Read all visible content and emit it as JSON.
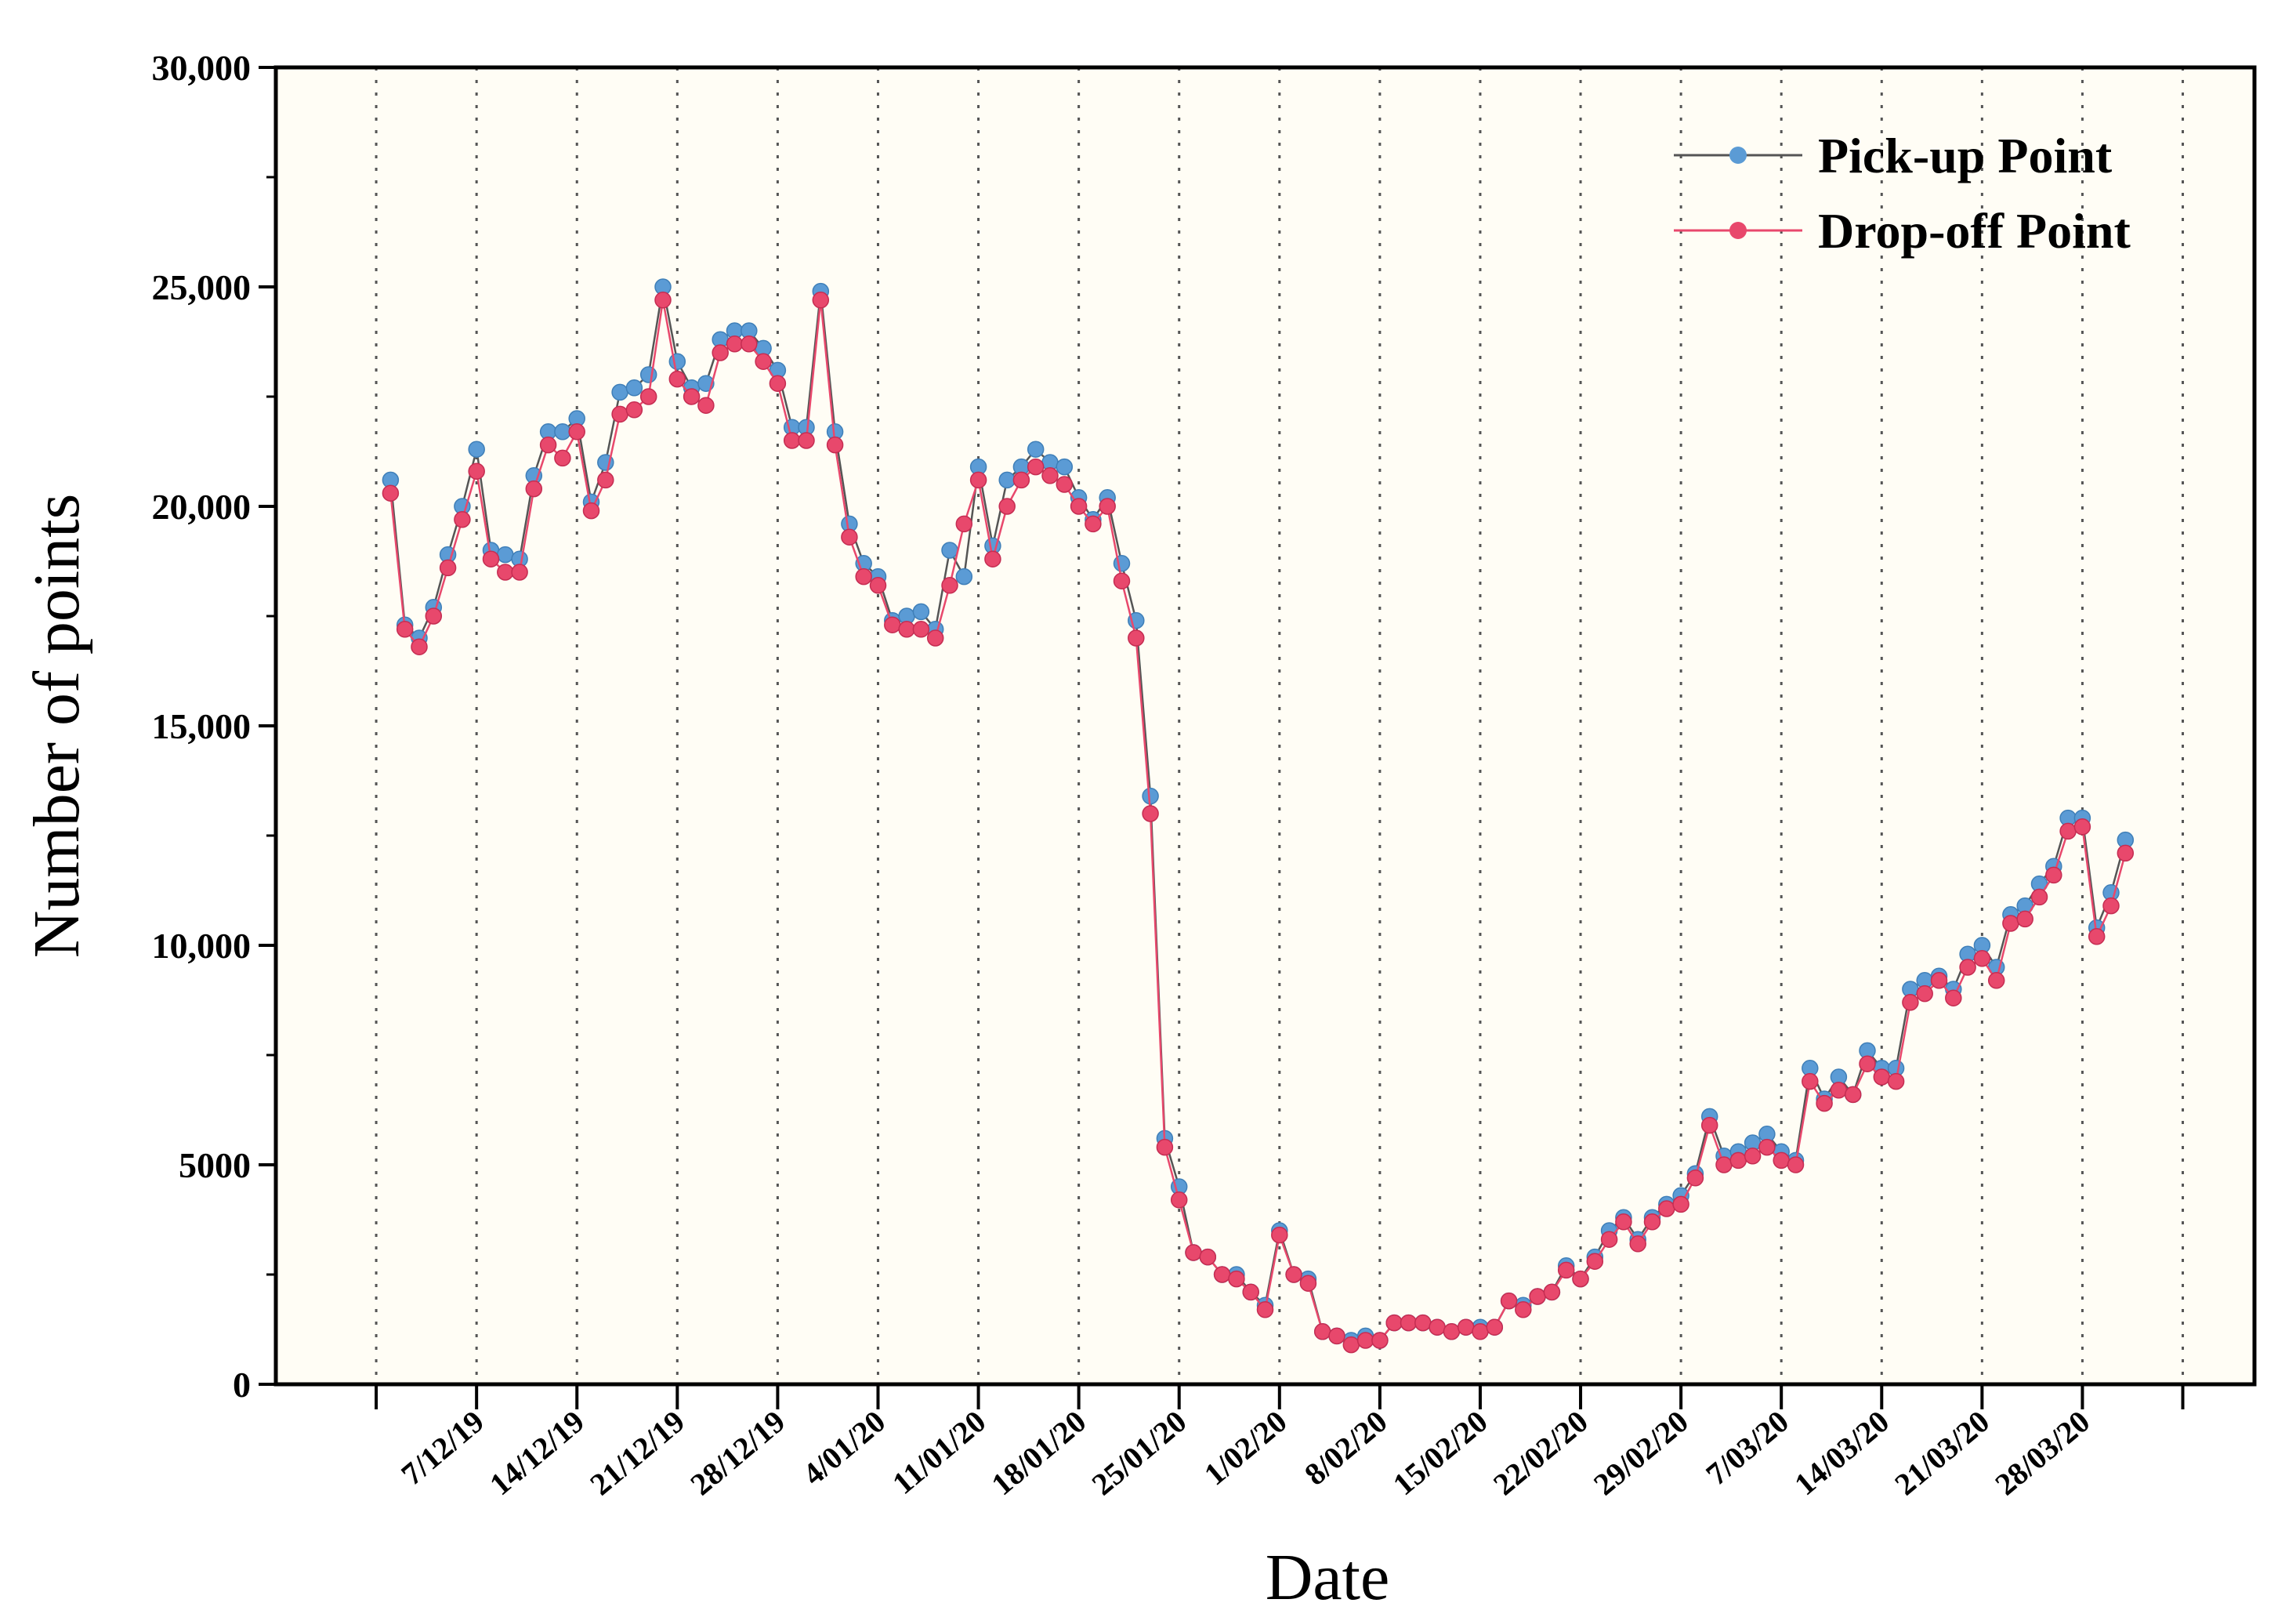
{
  "chart_data": {
    "type": "line",
    "xlabel": "Date",
    "ylabel": "Number of points",
    "ylim": [
      0,
      30000
    ],
    "y_ticks": [
      "0",
      "5000",
      "10,000",
      "15,000",
      "20,000",
      "25,000",
      "30,000"
    ],
    "y_tick_values": [
      0,
      5000,
      10000,
      15000,
      20000,
      25000,
      30000
    ],
    "x_tick_labels": [
      "7/12/19",
      "14/12/19",
      "21/12/19",
      "28/12/19",
      "4/01/20",
      "11/01/20",
      "18/01/20",
      "25/01/20",
      "1/02/20",
      "8/02/20",
      "15/02/20",
      "22/02/20",
      "29/02/20",
      "7/03/20",
      "14/03/20",
      "21/03/20",
      "28/03/20"
    ],
    "x_tick_days": [
      6,
      13,
      20,
      27,
      34,
      41,
      48,
      55,
      62,
      69,
      76,
      83,
      90,
      97,
      104,
      111,
      118
    ],
    "x_start_date": "2019-12-01",
    "xlim": [
      -8,
      130
    ],
    "grid": "vertical-dotted",
    "plot_background": "#fffdf5",
    "legend_position": "top-right",
    "series": [
      {
        "name": "Pick-up Point",
        "color": "#5b9bd5",
        "line_color": "#555555",
        "values": [
          20600,
          17300,
          17000,
          17700,
          18900,
          20000,
          21300,
          19000,
          18900,
          18800,
          20700,
          21700,
          21700,
          22000,
          20100,
          21000,
          22600,
          22700,
          23000,
          25000,
          23300,
          22700,
          22800,
          23800,
          24000,
          24000,
          23600,
          23100,
          21800,
          21800,
          24900,
          21700,
          19600,
          18700,
          18400,
          17400,
          17500,
          17600,
          17200,
          19000,
          18400,
          20900,
          19100,
          20600,
          20900,
          21300,
          21000,
          20900,
          20200,
          19700,
          20200,
          18700,
          17400,
          13400,
          5600,
          4500,
          3000,
          2900,
          2500,
          2500,
          2100,
          1800,
          3500,
          2500,
          2400,
          1200,
          1100,
          1000,
          1100,
          1000,
          1400,
          1400,
          1400,
          1300,
          1200,
          1300,
          1300,
          1300,
          1900,
          1800,
          2000,
          2100,
          2700,
          2400,
          2900,
          3500,
          3800,
          3300,
          3800,
          4100,
          4300,
          4800,
          6100,
          5200,
          5300,
          5500,
          5700,
          5300,
          5100,
          7200,
          6500,
          7000,
          6600,
          7600,
          7200,
          7200,
          9000,
          9200,
          9300,
          9000,
          9800,
          10000,
          9500,
          10700,
          10900,
          11400,
          11800,
          12900,
          12900,
          10400,
          11200,
          12400
        ]
      },
      {
        "name": "Drop-off Point",
        "color": "#e8486c",
        "line_color": "#e8486c",
        "values": [
          20300,
          17200,
          16800,
          17500,
          18600,
          19700,
          20800,
          18800,
          18500,
          18500,
          20400,
          21400,
          21100,
          21700,
          19900,
          20600,
          22100,
          22200,
          22500,
          24700,
          22900,
          22500,
          22300,
          23500,
          23700,
          23700,
          23300,
          22800,
          21500,
          21500,
          24700,
          21400,
          19300,
          18400,
          18200,
          17300,
          17200,
          17200,
          17000,
          18200,
          19600,
          20600,
          18800,
          20000,
          20600,
          20900,
          20700,
          20500,
          20000,
          19600,
          20000,
          18300,
          17000,
          13000,
          5400,
          4200,
          3000,
          2900,
          2500,
          2400,
          2100,
          1700,
          3400,
          2500,
          2300,
          1200,
          1100,
          900,
          1000,
          1000,
          1400,
          1400,
          1400,
          1300,
          1200,
          1300,
          1200,
          1300,
          1900,
          1700,
          2000,
          2100,
          2600,
          2400,
          2800,
          3300,
          3700,
          3200,
          3700,
          4000,
          4100,
          4700,
          5900,
          5000,
          5100,
          5200,
          5400,
          5100,
          5000,
          6900,
          6400,
          6700,
          6600,
          7300,
          7000,
          6900,
          8700,
          8900,
          9200,
          8800,
          9500,
          9700,
          9200,
          10500,
          10600,
          11100,
          11600,
          12600,
          12700,
          10200,
          10900,
          12100
        ]
      }
    ]
  }
}
